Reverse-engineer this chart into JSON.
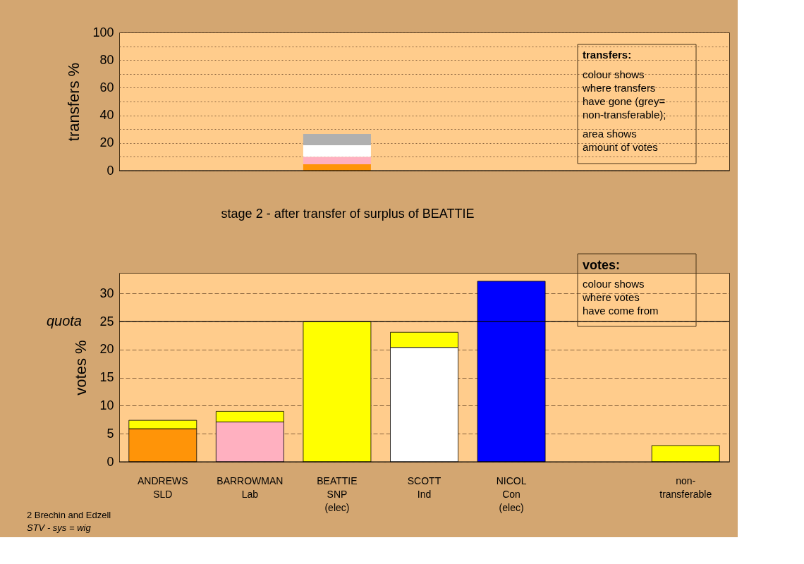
{
  "chart_data": [
    {
      "type": "bar",
      "stacked": true,
      "ylabel": "transfers %",
      "tick_labels": "y",
      "grid": "y",
      "categories": [
        null,
        null,
        null,
        null,
        null,
        null,
        null
      ],
      "series": [
        {
          "color": "#ff9408",
          "values": [
            null,
            null,
            4.6,
            null,
            null,
            null,
            null
          ]
        },
        {
          "color": "#ffb0c0",
          "values": [
            null,
            null,
            5.3,
            null,
            null,
            null,
            null
          ]
        },
        {
          "color": "#ffffff",
          "values": [
            null,
            null,
            8.5,
            null,
            null,
            null,
            null
          ]
        },
        {
          "color": "#b0b0b0",
          "values": [
            null,
            null,
            8.1,
            null,
            null,
            null,
            null
          ]
        }
      ],
      "ylim": [
        0,
        100
      ],
      "yticks": [
        0,
        {
          "value": 10,
          "label": null
        },
        20,
        {
          "value": 30,
          "label": null
        },
        40,
        {
          "value": 50,
          "label": null
        },
        60,
        {
          "value": 70,
          "label": null
        },
        80,
        {
          "value": 90,
          "label": null
        },
        100
      ],
      "annotations": [
        "transfers:",
        "colour shows\nwhere transfers\nhave gone (grey=\nnon-transferable);",
        "area shows\namount of votes"
      ]
    },
    {
      "type": "bar",
      "stacked": true,
      "title": "stage 2 - after transfer of surplus of BEATTIE",
      "ylabel": "votes %",
      "grid": "y",
      "line_style": "dashed",
      "categories": [
        "ANDREWS\nSLD",
        "BARROWMAN\nLab",
        "BEATTIE\nSNP\n(elec)",
        "SCOTT\nInd",
        "NICOL\nCon\n(elec)",
        null,
        "non-\ntransferable"
      ],
      "series": [
        {
          "colors": [
            "#ff9408",
            "#ffb0c0",
            "#ffff00",
            "#ffffff",
            "#0000ff",
            null,
            null
          ],
          "values": [
            5.9,
            7.1,
            25,
            20.4,
            32.2,
            null,
            null
          ]
        },
        {
          "color": "#ffff00",
          "values": [
            1.5,
            1.9,
            null,
            2.7,
            null,
            null,
            2.9
          ]
        }
      ],
      "ylim": [
        0,
        33.7
      ],
      "yticks": [
        0,
        5,
        10,
        15,
        20,
        25,
        30
      ],
      "ref_lines": [
        {
          "axis": "y",
          "value": 25,
          "label": "quota"
        }
      ],
      "annotations": [
        "votes:",
        "colour shows\nwhere votes\nhave come from",
        "2 Brechin and Edzell",
        "STV - sys = wig"
      ]
    }
  ]
}
